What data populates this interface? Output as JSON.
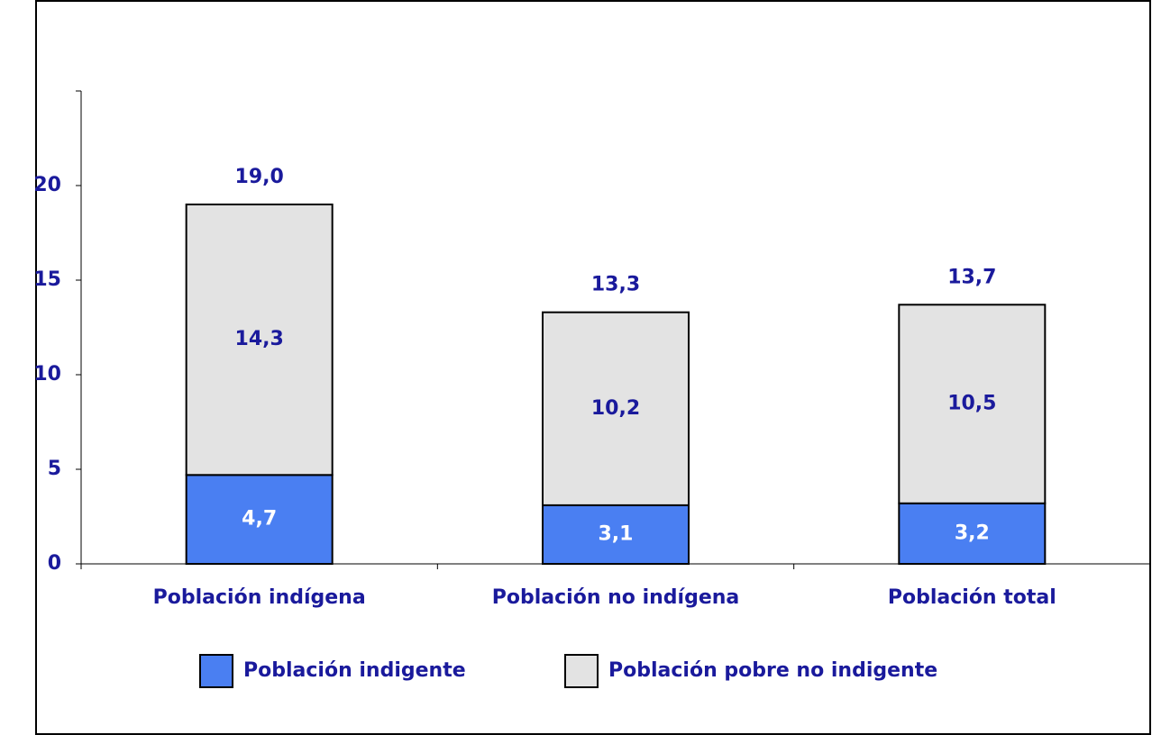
{
  "chart_data": {
    "type": "stacked_bar",
    "categories": [
      "Población indígena",
      "Población no indígena",
      "Población total"
    ],
    "series": [
      {
        "name": "Población indigente",
        "color": "#4a7ff2",
        "label_color": "#ffffff",
        "values": [
          4.7,
          3.1,
          3.2
        ],
        "value_labels": [
          "4,7",
          "3,1",
          "3,2"
        ]
      },
      {
        "name": "Población pobre no indigente",
        "color": "#e3e3e3",
        "label_color": "#1a1a9c",
        "values": [
          14.3,
          10.2,
          10.5
        ],
        "value_labels": [
          "14,3",
          "10,2",
          "10,5"
        ]
      }
    ],
    "totals": [
      19.0,
      13.3,
      13.7
    ],
    "total_labels": [
      "19,0",
      "13,3",
      "13,7"
    ],
    "ylim": [
      0,
      25
    ],
    "yticks": [
      0,
      5,
      10,
      15,
      20
    ],
    "grid": false,
    "legend": "bottom"
  }
}
